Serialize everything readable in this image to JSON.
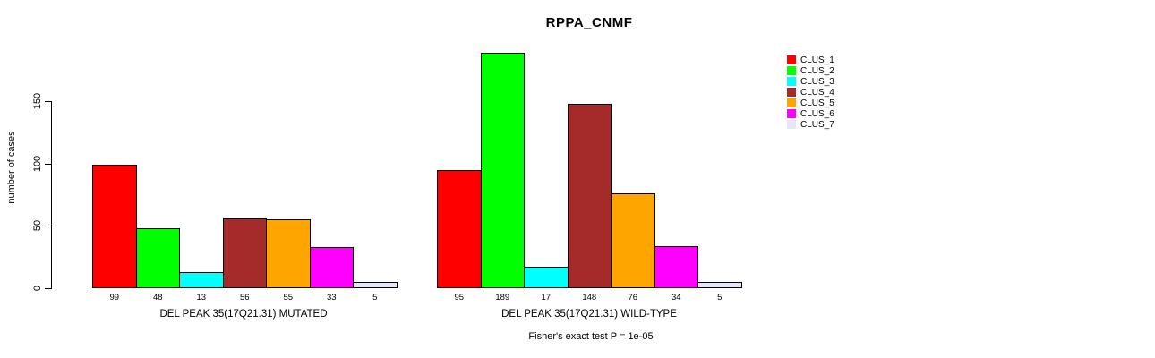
{
  "title": "RPPA_CNMF",
  "chart_data": {
    "type": "bar",
    "title": "RPPA_CNMF",
    "xlabel": "",
    "ylabel": "number of cases",
    "y_ticks": [
      0,
      50,
      100,
      150
    ],
    "y_axis_max_tick": 150,
    "ylim": [
      0,
      190
    ],
    "grid": false,
    "legend_position": "right-outside",
    "series": [
      {
        "name": "CLUS_1",
        "color": "#FF0000"
      },
      {
        "name": "CLUS_2",
        "color": "#00FF00"
      },
      {
        "name": "CLUS_3",
        "color": "#00FFFF"
      },
      {
        "name": "CLUS_4",
        "color": "#A52A2A"
      },
      {
        "name": "CLUS_5",
        "color": "#FFA500"
      },
      {
        "name": "CLUS_6",
        "color": "#FF00FF"
      },
      {
        "name": "CLUS_7",
        "color": "#E6E6FA"
      }
    ],
    "groups": [
      {
        "label": "DEL PEAK 35(17Q21.31) MUTATED",
        "values": [
          99,
          48,
          13,
          56,
          55,
          33,
          5
        ]
      },
      {
        "label": "DEL PEAK 35(17Q21.31) WILD-TYPE",
        "values": [
          95,
          189,
          17,
          148,
          76,
          34,
          5
        ]
      }
    ],
    "annotation": "Fisher's exact test P = 1e-05"
  }
}
